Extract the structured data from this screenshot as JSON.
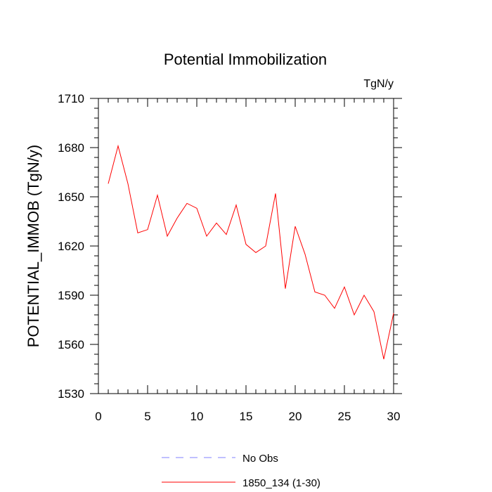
{
  "chart_data": {
    "type": "line",
    "title": "Potential Immobilization",
    "units": "TgN/y",
    "xlabel": "",
    "ylabel": "POTENTIAL_IMMOB  (TgN/y)",
    "xlim": [
      0,
      30
    ],
    "ylim": [
      1530,
      1710
    ],
    "xticks": [
      0,
      5,
      10,
      15,
      20,
      25,
      30
    ],
    "yticks": [
      1530,
      1560,
      1590,
      1620,
      1650,
      1680,
      1710
    ],
    "grid": false,
    "legend_position": "bottom-center",
    "series": [
      {
        "name": "No Obs",
        "color": "#8080ff",
        "style": "dashed",
        "x": [],
        "values": []
      },
      {
        "name": "1850_134 (1-30)",
        "color": "#ff0000",
        "style": "solid",
        "x": [
          1,
          2,
          3,
          4,
          5,
          6,
          7,
          8,
          9,
          10,
          11,
          12,
          13,
          14,
          15,
          16,
          17,
          18,
          19,
          20,
          21,
          22,
          23,
          24,
          25,
          26,
          27,
          28,
          29,
          30
        ],
        "values": [
          1658,
          1681,
          1658,
          1628,
          1630,
          1651,
          1626,
          1637,
          1646,
          1643,
          1626,
          1634,
          1627,
          1645,
          1621,
          1616,
          1620,
          1652,
          1594,
          1632,
          1615,
          1592,
          1590,
          1582,
          1595,
          1578,
          1590,
          1580,
          1551,
          1579
        ]
      }
    ]
  }
}
